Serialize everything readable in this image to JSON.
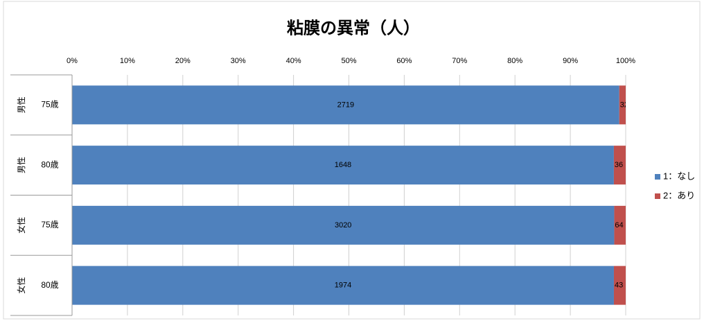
{
  "chart_data": {
    "type": "bar",
    "orientation": "horizontal",
    "stacking": "percent",
    "title": "粘膜の異常（人）",
    "category_groups": [
      "男性",
      "男性",
      "女性",
      "女性"
    ],
    "categories": [
      "75歳",
      "80歳",
      "75歳",
      "80歳"
    ],
    "series": [
      {
        "name": "1：なし",
        "color": "#4f81bd",
        "values": [
          2719,
          1648,
          3020,
          1974
        ]
      },
      {
        "name": "2：あり",
        "color": "#c0504d",
        "values": [
          32,
          36,
          64,
          43
        ]
      }
    ],
    "xlim": [
      0,
      100
    ],
    "xticks": [
      {
        "value": 0,
        "label": "0%"
      },
      {
        "value": 10,
        "label": "10%"
      },
      {
        "value": 20,
        "label": "20%"
      },
      {
        "value": 30,
        "label": "30%"
      },
      {
        "value": 40,
        "label": "40%"
      },
      {
        "value": 50,
        "label": "50%"
      },
      {
        "value": 60,
        "label": "60%"
      },
      {
        "value": 70,
        "label": "70%"
      },
      {
        "value": 80,
        "label": "80%"
      },
      {
        "value": 90,
        "label": "90%"
      },
      {
        "value": 100,
        "label": "100%"
      }
    ],
    "grid": true,
    "legend": "right"
  }
}
